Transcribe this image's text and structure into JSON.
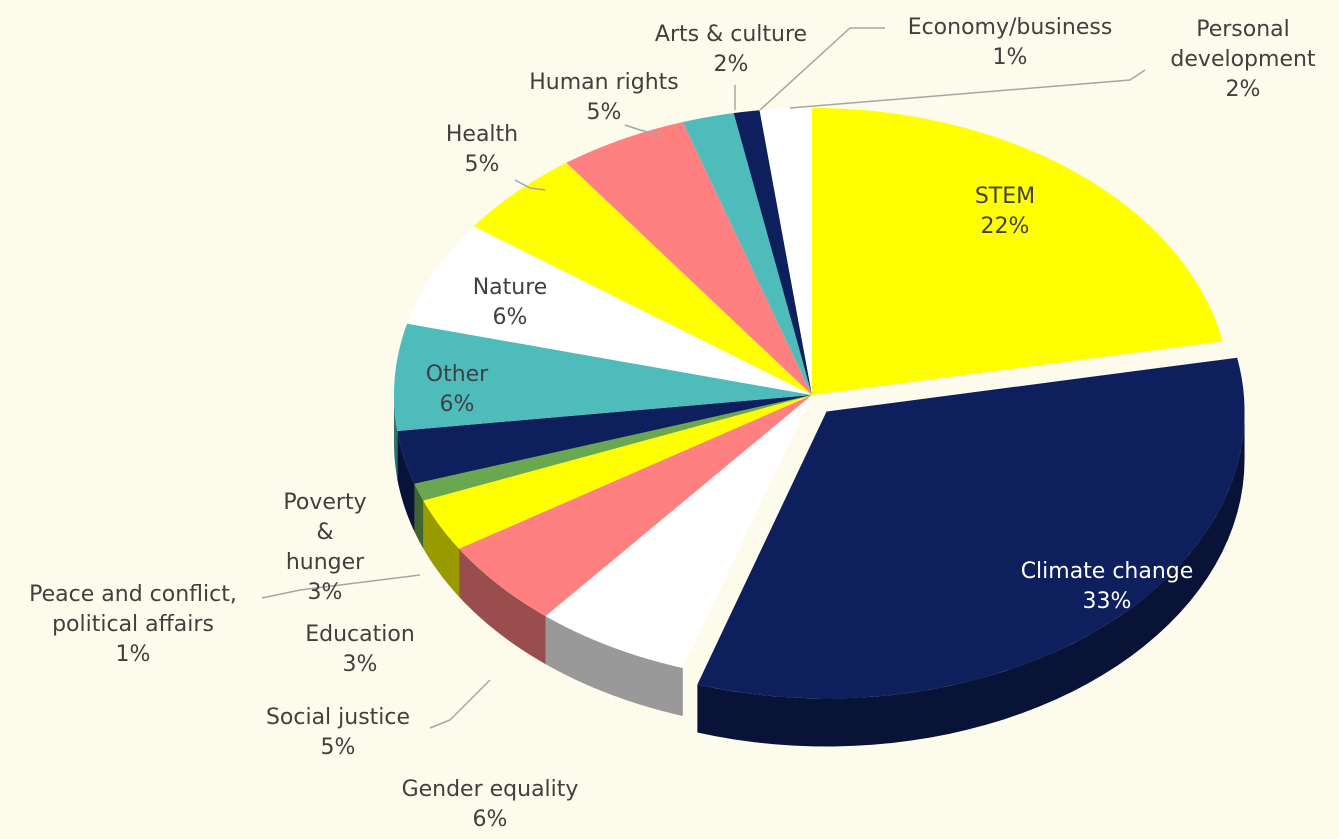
{
  "chart_data": {
    "type": "pie3d",
    "categories": [
      "STEM",
      "Climate change",
      "Gender equality",
      "Social justice",
      "Education",
      "Peace and conflict, political affairs",
      "Poverty & hunger",
      "Other",
      "Nature",
      "Health",
      "Human rights",
      "Arts & culture",
      "Economy/business",
      "Personal development"
    ],
    "values": [
      22,
      33,
      6,
      5,
      3,
      1,
      3,
      6,
      6,
      5,
      5,
      2,
      1,
      2
    ],
    "value_labels": [
      "22%",
      "33%",
      "6%",
      "5%",
      "3%",
      "1%",
      "3%",
      "6%",
      "6%",
      "5%",
      "5%",
      "2%",
      "1%",
      "2%"
    ],
    "colors": [
      "#ffff00",
      "#0d1f5c",
      "#ffffff",
      "#ff8080",
      "#ffff00",
      "#6aa84f",
      "#0d1f5c",
      "#4fbcbc",
      "#ffffff",
      "#ffff00",
      "#ff8080",
      "#4fbcbc",
      "#0d1f5c",
      "#ffffff"
    ],
    "exploded": [
      1
    ]
  }
}
